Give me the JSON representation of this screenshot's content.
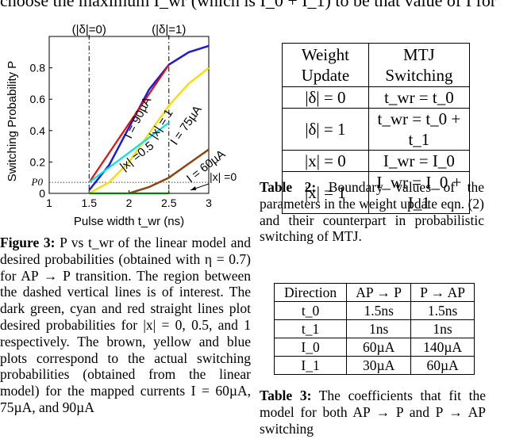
{
  "top_text": "choose the maximum I_wr (which is I_0 + I_1) to be that value of I for",
  "figure": {
    "chart_data": {
      "type": "line",
      "xlabel": "Pulse width t_wr (ns)",
      "ylabel": "Switching Probability P",
      "xlim": [
        1,
        3
      ],
      "ylim": [
        0,
        1
      ],
      "x_ticks": [
        "1",
        "1.5",
        "2",
        "2.5",
        "3"
      ],
      "y_ticks": [
        "0",
        "0.2",
        "0.4",
        "0.6",
        "0.8"
      ],
      "p0_label": "P0",
      "p0": 0.07,
      "dashed_markers": [
        {
          "x": 1.5,
          "label": "(|δ|=0)"
        },
        {
          "x": 2.5,
          "label": "(|δ|=1)"
        }
      ],
      "series": [
        {
          "name": "I = 90µA",
          "color": "#1a1adb",
          "kind": "curve",
          "x": [
            1.5,
            1.75,
            2.0,
            2.25,
            2.5,
            2.75,
            3.0
          ],
          "y": [
            0.02,
            0.18,
            0.42,
            0.66,
            0.82,
            0.9,
            0.94
          ]
        },
        {
          "name": "I = 75µA",
          "color": "#f2e010",
          "kind": "curve",
          "x": [
            1.5,
            1.75,
            2.0,
            2.25,
            2.5,
            2.75,
            3.0
          ],
          "y": [
            0.0,
            0.07,
            0.2,
            0.38,
            0.56,
            0.7,
            0.8
          ]
        },
        {
          "name": "I = 60µA",
          "color": "#8b4513",
          "kind": "curve",
          "x": [
            2.0,
            2.25,
            2.5,
            2.75,
            3.0
          ],
          "y": [
            0.0,
            0.04,
            0.1,
            0.19,
            0.28
          ]
        },
        {
          "name": "|x| = 1",
          "color": "#e01010",
          "kind": "line",
          "x": [
            1.5,
            2.5
          ],
          "y": [
            0.07,
            0.82
          ]
        },
        {
          "name": "|x| = 0.5",
          "color": "#00e5e5",
          "kind": "line",
          "x": [
            1.5,
            2.5
          ],
          "y": [
            0.07,
            0.45
          ]
        },
        {
          "name": "|x| = 0",
          "color": "#0a7a0a",
          "kind": "line",
          "x": [
            1.5,
            2.5
          ],
          "y": [
            0.0,
            0.0
          ]
        }
      ],
      "labels": {
        "i90": "I = 90µA",
        "i75": "I = 75µA",
        "i60": "I = 60µA",
        "x1": "|x| = 1",
        "x05": "|x| =0.5",
        "x0": "|x| =0"
      }
    }
  },
  "figure_caption": {
    "lead": "Figure 3:",
    "text": " P vs t_wr of the linear model and desired probabilities (obtained with η = 0.7) for AP → P transition. The region between the dashed vertical lines is of interest. The dark green, cyan and red straight lines plot desired probabilities for |x| = 0, 0.5, and 1 respectively. The brown, yellow and blue plots correspond to the actual switching probabilities (obtained from the linear model) for the mapped currents I = 60µA, 75µA, and 90µA"
  },
  "table2": {
    "headers": [
      "Weight Update",
      "MTJ Switching"
    ],
    "rows": [
      [
        "|δ| = 0",
        "t_wr = t_0"
      ],
      [
        "|δ| = 1",
        "t_wr = t_0 + t_1"
      ],
      [
        "|x| = 0",
        "I_wr = I_0"
      ],
      [
        "|x| = 1",
        "I_wr = I_0 + I_1"
      ]
    ],
    "caption_lead": "Table 2:",
    "caption_text": " Boundary values of the parameters in the weight update eqn. (2) and their counterpart in probabilistic switching of MTJ."
  },
  "table3": {
    "headers": [
      "Direction",
      "AP → P",
      "P → AP"
    ],
    "rows": [
      [
        "t_0",
        "1.5ns",
        "1.5ns"
      ],
      [
        "t_1",
        "1ns",
        "1ns"
      ],
      [
        "I_0",
        "60µA",
        "140µA"
      ],
      [
        "I_1",
        "30µA",
        "60µA"
      ]
    ],
    "caption_lead": "Table 3:",
    "caption_text": " The coefficients that fit the model for both AP → P and P → AP switching"
  }
}
